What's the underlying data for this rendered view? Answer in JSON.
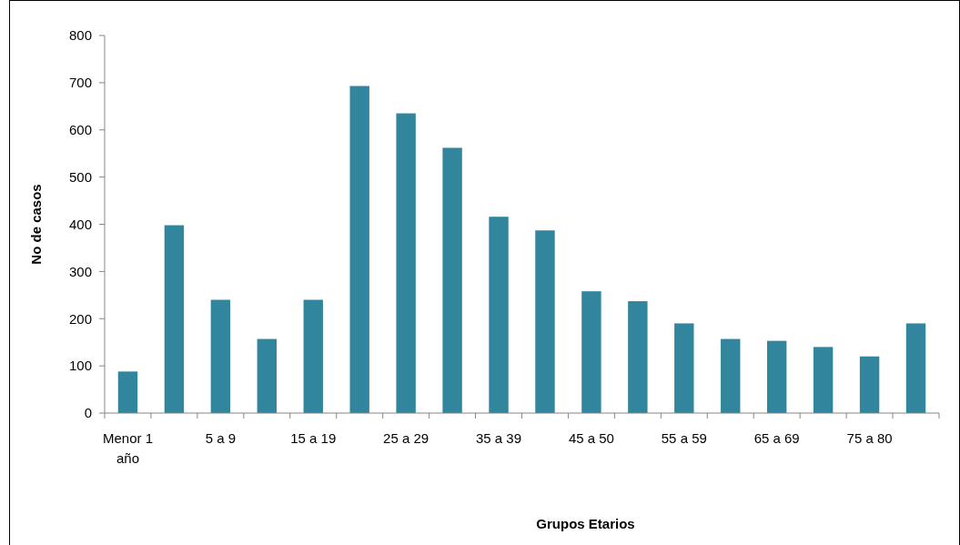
{
  "chart_data": {
    "type": "bar",
    "xlabel": "Grupos Etarios",
    "ylabel": "No de casos",
    "categories": [
      "Menor 1 año",
      null,
      "5 a 9",
      null,
      "15 a 19",
      null,
      "25 a 29",
      null,
      "35 a 39",
      null,
      "45 a 50",
      null,
      "55 a 59",
      null,
      "65 a 69",
      null,
      "75 a 80",
      null
    ],
    "values": [
      88,
      398,
      240,
      157,
      240,
      693,
      635,
      562,
      416,
      387,
      258,
      237,
      190,
      157,
      153,
      140,
      120,
      190
    ],
    "color": "#31859c",
    "ylim": [
      0,
      800
    ],
    "yticks": [
      0,
      100,
      200,
      300,
      400,
      500,
      600,
      700,
      800
    ],
    "grid": false
  }
}
